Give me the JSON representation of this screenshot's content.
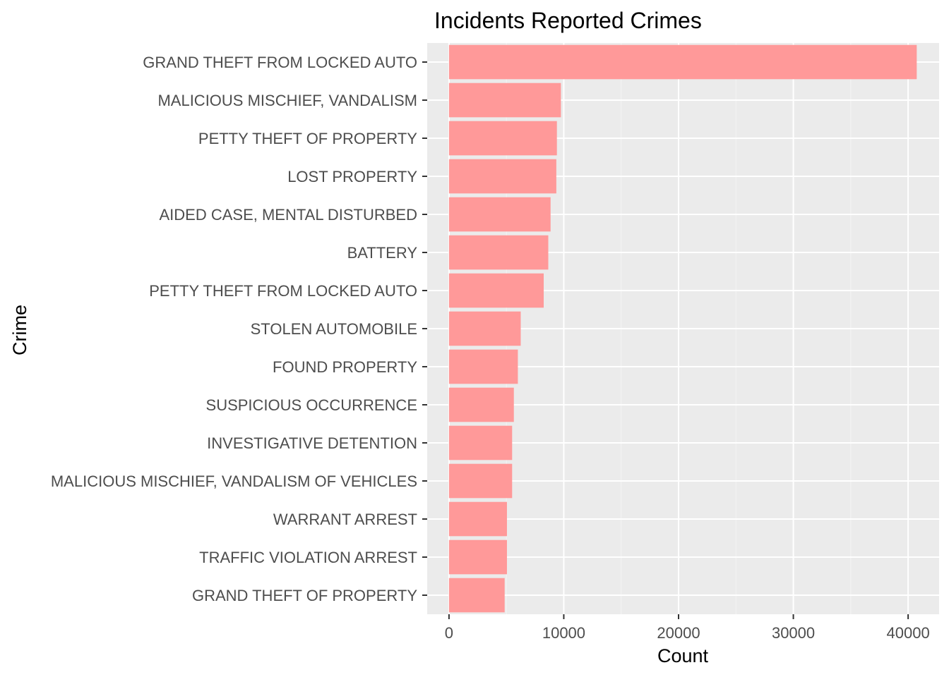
{
  "chart_data": {
    "type": "bar",
    "orientation": "horizontal",
    "title": "Incidents Reported Crimes",
    "xlabel": "Count",
    "ylabel": "Crime",
    "categories": [
      "GRAND THEFT FROM LOCKED AUTO",
      "MALICIOUS MISCHIEF, VANDALISM",
      "PETTY THEFT OF PROPERTY",
      "LOST PROPERTY",
      "AIDED CASE, MENTAL DISTURBED",
      "BATTERY",
      "PETTY THEFT FROM LOCKED AUTO",
      "STOLEN AUTOMOBILE",
      "FOUND PROPERTY",
      "SUSPICIOUS OCCURRENCE",
      "INVESTIGATIVE DETENTION",
      "MALICIOUS MISCHIEF, VANDALISM OF VEHICLES",
      "WARRANT ARREST",
      "TRAFFIC VIOLATION ARREST",
      "GRAND THEFT OF PROPERTY"
    ],
    "values": [
      40750,
      9750,
      9400,
      9350,
      8850,
      8650,
      8250,
      6250,
      6000,
      5650,
      5500,
      5500,
      5050,
      5050,
      4850
    ],
    "xlim": [
      -1900,
      42700
    ],
    "xticks": [
      0,
      10000,
      20000,
      30000,
      40000
    ],
    "xtick_labels": [
      "0",
      "10000",
      "20000",
      "30000",
      "40000"
    ],
    "grid": true,
    "colors": {
      "bar": "#ff9999",
      "panel_background": "#ebebeb",
      "grid_major": "#ffffff",
      "grid_minor": "#f4f4f4",
      "tick_label": "#4d4d4d",
      "tick_mark": "#333333"
    }
  }
}
